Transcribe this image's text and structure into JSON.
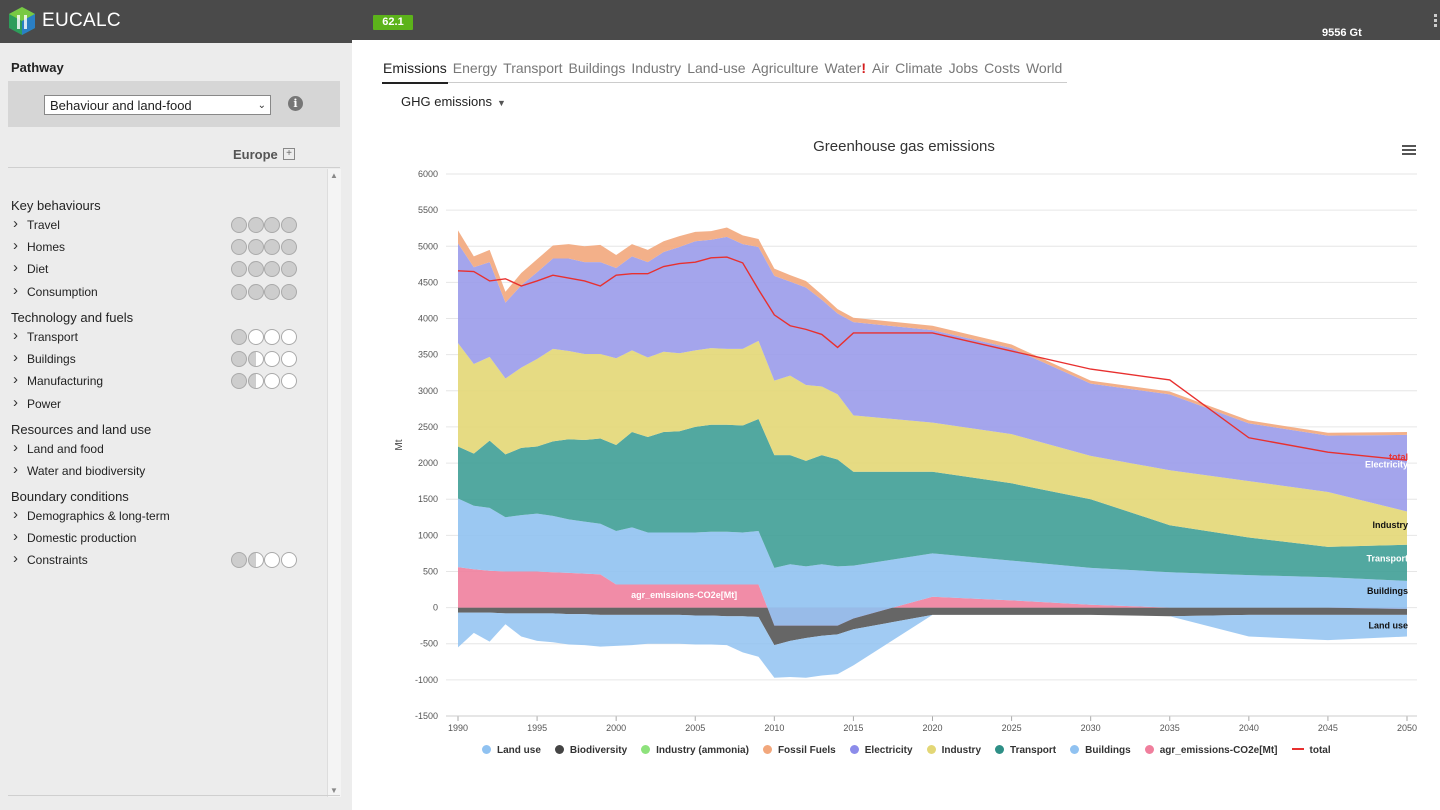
{
  "app": {
    "title": "EUCALC",
    "score_badge": "62.1",
    "top_right_value": "9556 Gt"
  },
  "sidebar": {
    "pathway_label": "Pathway",
    "pathway_selected": "Behaviour and land-food",
    "region": "Europe",
    "groups": [
      {
        "title": "Key behaviours",
        "levers": [
          {
            "label": "Travel",
            "levels": [
              "full",
              "full",
              "full",
              "full"
            ]
          },
          {
            "label": "Homes",
            "levels": [
              "full",
              "full",
              "full",
              "full"
            ]
          },
          {
            "label": "Diet",
            "levels": [
              "full",
              "full",
              "full",
              "full"
            ]
          },
          {
            "label": "Consumption",
            "levels": [
              "full",
              "full",
              "full",
              "full"
            ]
          }
        ]
      },
      {
        "title": "Technology and fuels",
        "levers": [
          {
            "label": "Transport",
            "levels": [
              "full",
              "empty",
              "empty",
              "empty"
            ]
          },
          {
            "label": "Buildings",
            "levels": [
              "full",
              "half",
              "empty",
              "empty"
            ]
          },
          {
            "label": "Manufacturing",
            "levels": [
              "full",
              "half",
              "empty",
              "empty"
            ]
          },
          {
            "label": "Power",
            "levels": []
          }
        ]
      },
      {
        "title": "Resources and land use",
        "levers": [
          {
            "label": "Land and food",
            "levels": []
          },
          {
            "label": "Water and biodiversity",
            "levels": []
          }
        ]
      },
      {
        "title": "Boundary conditions",
        "levers": [
          {
            "label": "Demographics & long-term",
            "levels": []
          },
          {
            "label": "Domestic production",
            "levels": []
          },
          {
            "label": "Constraints",
            "levels": [
              "full",
              "half",
              "empty",
              "empty"
            ]
          }
        ]
      }
    ]
  },
  "tabs": [
    {
      "label": "Emissions",
      "active": true
    },
    {
      "label": "Energy"
    },
    {
      "label": "Transport"
    },
    {
      "label": "Buildings"
    },
    {
      "label": "Industry"
    },
    {
      "label": "Land-use"
    },
    {
      "label": "Agriculture"
    },
    {
      "label": "Water",
      "alert": "!"
    },
    {
      "label": "Air"
    },
    {
      "label": "Climate"
    },
    {
      "label": "Jobs"
    },
    {
      "label": "Costs"
    },
    {
      "label": "World"
    }
  ],
  "subselect": "GHG emissions",
  "chart_data": {
    "type": "area",
    "title": "Greenhouse gas emissions",
    "ylabel": "Mt",
    "ylim": [
      -1500,
      6000
    ],
    "yticks": [
      6000,
      5500,
      5000,
      4500,
      4000,
      3500,
      3000,
      2500,
      2000,
      1500,
      1000,
      500,
      0,
      -500,
      -1000,
      -1500
    ],
    "xlim": [
      1990,
      2050
    ],
    "xticks": [
      1990,
      1995,
      2000,
      2005,
      2010,
      2015,
      2020,
      2025,
      2030,
      2035,
      2040,
      2045,
      2050
    ],
    "x": [
      1990,
      1991,
      1992,
      1993,
      1994,
      1995,
      1996,
      1997,
      1998,
      1999,
      2000,
      2001,
      2002,
      2003,
      2004,
      2005,
      2006,
      2007,
      2008,
      2009,
      2010,
      2011,
      2012,
      2013,
      2014,
      2015,
      2020,
      2025,
      2030,
      2035,
      2040,
      2045,
      2050
    ],
    "stacked_series_bottom_to_top": [
      {
        "name": "agr_emissions-CO2e[Mt]",
        "color": "#f07f9d",
        "values": [
          560,
          530,
          510,
          500,
          500,
          500,
          490,
          480,
          470,
          460,
          320,
          320,
          320,
          320,
          320,
          320,
          320,
          320,
          320,
          320,
          -250,
          -250,
          -250,
          -250,
          -250,
          -150,
          150,
          100,
          40,
          0,
          0,
          0,
          -20
        ]
      },
      {
        "name": "Buildings",
        "color": "#90c2f1",
        "values": [
          950,
          880,
          870,
          750,
          780,
          800,
          780,
          740,
          720,
          700,
          740,
          790,
          720,
          720,
          720,
          720,
          730,
          730,
          720,
          740,
          800,
          850,
          820,
          850,
          820,
          730,
          600,
          550,
          510,
          490,
          450,
          420,
          390
        ]
      },
      {
        "name": "Transport",
        "color": "#3f9f96",
        "values": [
          720,
          720,
          930,
          870,
          930,
          930,
          1030,
          1110,
          1130,
          1180,
          1190,
          1320,
          1320,
          1390,
          1400,
          1460,
          1480,
          1480,
          1480,
          1550,
          1560,
          1510,
          1460,
          1510,
          1480,
          1300,
          1130,
          1070,
          950,
          650,
          520,
          420,
          500
        ]
      },
      {
        "name": "Industry",
        "color": "#e3d776",
        "values": [
          1430,
          1240,
          1160,
          1050,
          1110,
          1210,
          1280,
          1220,
          1190,
          1170,
          1200,
          1130,
          1100,
          1110,
          1080,
          1060,
          1060,
          1050,
          1060,
          1080,
          1030,
          1100,
          1050,
          950,
          900,
          780,
          680,
          680,
          600,
          760,
          780,
          760,
          460
        ]
      },
      {
        "name": "Electricity",
        "color": "#9a9bea",
        "values": [
          1380,
          1340,
          1310,
          1050,
          1140,
          1200,
          1250,
          1280,
          1270,
          1270,
          1250,
          1300,
          1320,
          1380,
          1470,
          1510,
          1500,
          1550,
          1450,
          1300,
          1450,
          1300,
          1350,
          1200,
          1120,
          1290,
          1280,
          1190,
          1000,
          1050,
          800,
          780,
          1060
        ]
      },
      {
        "name": "Fossil Fuels",
        "color": "#f2a77c",
        "values": [
          180,
          150,
          170,
          150,
          170,
          180,
          180,
          200,
          220,
          240,
          180,
          170,
          170,
          150,
          150,
          130,
          120,
          130,
          120,
          110,
          100,
          90,
          90,
          70,
          60,
          60,
          60,
          50,
          40,
          40,
          40,
          40,
          40
        ]
      }
    ],
    "negative_series": [
      {
        "name": "Biodiversity",
        "color": "#555555",
        "values": [
          -70,
          -70,
          -70,
          -80,
          -80,
          -80,
          -80,
          -90,
          -90,
          -100,
          -100,
          -100,
          -100,
          -100,
          -100,
          -110,
          -110,
          -120,
          -120,
          -130,
          -520,
          -460,
          -420,
          -390,
          -370,
          -300,
          -100,
          -100,
          -100,
          -120,
          -100,
          -100,
          -100
        ]
      },
      {
        "name": "Land use",
        "color": "#90c2f1",
        "values": [
          -480,
          -280,
          -400,
          -150,
          -320,
          -380,
          -400,
          -420,
          -430,
          -440,
          -430,
          -420,
          -400,
          -400,
          -400,
          -400,
          -400,
          -400,
          -500,
          -550,
          -450,
          -500,
          -550,
          -550,
          -550,
          -500,
          0,
          0,
          0,
          0,
          -300,
          -350,
          -300
        ]
      },
      {
        "name": "Industry (ammonia)",
        "color": "#8ee27c",
        "values": []
      }
    ],
    "total": {
      "name": "total",
      "color": "#e8302f",
      "values": [
        4660,
        4650,
        4520,
        4550,
        4450,
        4520,
        4600,
        4560,
        4520,
        4450,
        4600,
        4620,
        4620,
        4720,
        4760,
        4780,
        4840,
        4850,
        4770,
        4400,
        4050,
        3900,
        3850,
        3780,
        3600,
        3800,
        3800,
        3550,
        3300,
        3150,
        2350,
        2150,
        2040
      ]
    },
    "series_labels": [
      "total",
      "Electricity",
      "Industry",
      "Transport",
      "Buildings",
      "Land use"
    ],
    "inline_label": "agr_emissions-CO2e[Mt]",
    "legend": [
      {
        "name": "Land use",
        "color": "#90c2f1",
        "kind": "dot"
      },
      {
        "name": "Biodiversity",
        "color": "#444444",
        "kind": "dot"
      },
      {
        "name": "Industry (ammonia)",
        "color": "#8ee27c",
        "kind": "dot"
      },
      {
        "name": "Fossil Fuels",
        "color": "#f2a77c",
        "kind": "dot"
      },
      {
        "name": "Electricity",
        "color": "#8c8cea",
        "kind": "dot"
      },
      {
        "name": "Industry",
        "color": "#e3d776",
        "kind": "dot"
      },
      {
        "name": "Transport",
        "color": "#2e8f86",
        "kind": "dot"
      },
      {
        "name": "Buildings",
        "color": "#90c2f1",
        "kind": "dot"
      },
      {
        "name": "agr_emissions-CO2e[Mt]",
        "color": "#f07f9d",
        "kind": "dot"
      },
      {
        "name": "total",
        "color": "#e8302f",
        "kind": "line"
      }
    ]
  }
}
